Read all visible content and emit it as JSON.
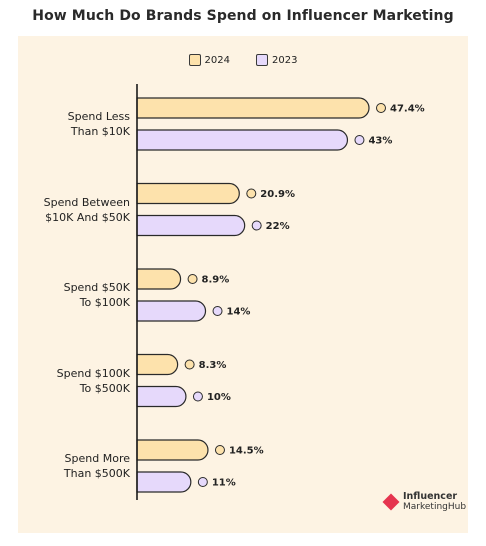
{
  "chart_data": {
    "type": "bar",
    "orientation": "horizontal",
    "title": "How Much Do Brands Spend on Influencer Marketing",
    "categories": [
      "Spend Less\nThan $10K",
      "Spend Between\n$10K And $50K",
      "Spend $50K\nTo $100K",
      "Spend $100K\nTo $500K",
      "Spend More\nThan $500K"
    ],
    "series": [
      {
        "name": "2024",
        "values": [
          47.4,
          20.9,
          8.9,
          8.3,
          14.5
        ],
        "labels": [
          "47.4%",
          "20.9%",
          "8.9%",
          "8.3%",
          "14.5%"
        ],
        "color": "#fde2ac"
      },
      {
        "name": "2023",
        "values": [
          43,
          22,
          14,
          10,
          11
        ],
        "labels": [
          "43%",
          "22%",
          "14%",
          "10%",
          "11%"
        ],
        "color": "#e6d9fb"
      }
    ],
    "xlim": [
      0,
      50
    ],
    "legend_position": "top-center",
    "grid": false,
    "background": "#fdf3e3"
  },
  "brand": {
    "line1": "Influencer",
    "line2": "MarketingHub"
  }
}
